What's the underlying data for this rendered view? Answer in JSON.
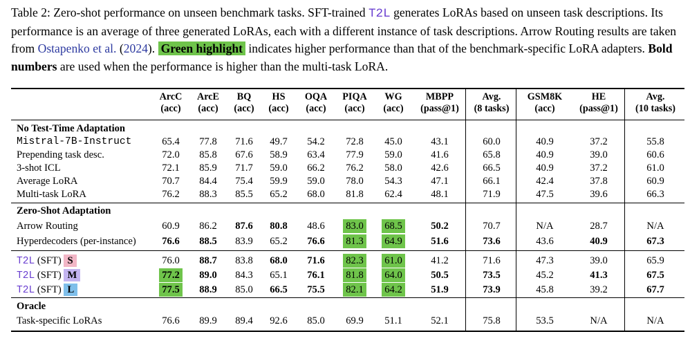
{
  "caption": {
    "p1": "Table 2: Zero-shot performance on unseen benchmark tasks. SFT-trained ",
    "t2l": "T2L",
    "p2": " generates LoRAs based on unseen task descriptions. Its performance is an average of three generated LoRAs, each with a different instance of task descriptions. Arrow Routing results are taken from ",
    "cite_a": "Ostapenko et al.",
    "cite_open": " (",
    "cite_year": "2024",
    "cite_close": "). ",
    "highlight": "Green highlight",
    "p3": " indicates higher performance than that of the benchmark-specific LoRA adapters. ",
    "bold": "Bold numbers",
    "p4": " are used when the performance is higher than the multi-task LoRA."
  },
  "columns": [
    {
      "l1": "ArcC",
      "l2": "(acc)"
    },
    {
      "l1": "ArcE",
      "l2": "(acc)"
    },
    {
      "l1": "BQ",
      "l2": "(acc)"
    },
    {
      "l1": "HS",
      "l2": "(acc)"
    },
    {
      "l1": "OQA",
      "l2": "(acc)"
    },
    {
      "l1": "PIQA",
      "l2": "(acc)"
    },
    {
      "l1": "WG",
      "l2": "(acc)"
    },
    {
      "l1": "MBPP",
      "l2": "(pass@1)"
    },
    {
      "l1": "Avg.",
      "l2": "(8 tasks)"
    },
    {
      "l1": "GSM8K",
      "l2": "(acc)"
    },
    {
      "l1": "HE",
      "l2": "(pass@1)"
    },
    {
      "l1": "Avg.",
      "l2": "(10 tasks)"
    }
  ],
  "sections": {
    "no_tta": "No Test-Time Adaptation",
    "zero_shot": "Zero-Shot Adaptation",
    "oracle": "Oracle"
  },
  "rows": {
    "mistral": {
      "label": "Mistral-7B-Instruct",
      "values": [
        "65.4",
        "77.8",
        "71.6",
        "49.7",
        "54.2",
        "72.8",
        "45.0",
        "43.1",
        "60.0",
        "40.9",
        "37.2",
        "55.8"
      ]
    },
    "prepend": {
      "label": "Prepending task desc.",
      "values": [
        "72.0",
        "85.8",
        "67.6",
        "58.9",
        "63.4",
        "77.9",
        "59.0",
        "41.6",
        "65.8",
        "40.9",
        "39.0",
        "60.6"
      ]
    },
    "icl": {
      "label": "3-shot ICL",
      "values": [
        "72.1",
        "85.9",
        "71.7",
        "59.0",
        "66.2",
        "76.2",
        "58.0",
        "42.6",
        "66.5",
        "40.9",
        "37.2",
        "61.0"
      ]
    },
    "avg_lora": {
      "label": "Average LoRA",
      "values": [
        "70.7",
        "84.4",
        "75.4",
        "59.9",
        "59.0",
        "78.0",
        "54.3",
        "47.1",
        "66.1",
        "42.4",
        "37.8",
        "60.9"
      ]
    },
    "mt_lora": {
      "label": "Multi-task LoRA",
      "values": [
        "76.2",
        "88.3",
        "85.5",
        "65.2",
        "68.0",
        "81.8",
        "62.4",
        "48.1",
        "71.9",
        "47.5",
        "39.6",
        "66.3"
      ]
    },
    "arrow": {
      "label": "Arrow Routing",
      "values": [
        "60.9",
        "86.2",
        "87.6",
        "80.8",
        "48.6",
        "83.0",
        "68.5",
        "50.2",
        "70.7",
        "N/A",
        "28.7",
        "N/A"
      ]
    },
    "hyper": {
      "label": "Hyperdecoders (per-instance)",
      "values": [
        "76.6",
        "88.5",
        "83.9",
        "65.2",
        "76.6",
        "81.3",
        "64.9",
        "51.6",
        "73.6",
        "43.6",
        "40.9",
        "67.3"
      ]
    },
    "t2l_s": {
      "name": "T2L",
      "suffix": " (SFT) ",
      "size": "S",
      "values": [
        "76.0",
        "88.7",
        "83.8",
        "68.0",
        "71.6",
        "82.3",
        "61.0",
        "41.2",
        "71.6",
        "47.3",
        "39.0",
        "65.9"
      ]
    },
    "t2l_m": {
      "name": "T2L",
      "suffix": " (SFT) ",
      "size": "M",
      "values": [
        "77.2",
        "89.0",
        "84.3",
        "65.1",
        "76.1",
        "81.8",
        "64.0",
        "50.5",
        "73.5",
        "45.2",
        "41.3",
        "67.5"
      ]
    },
    "t2l_l": {
      "name": "T2L",
      "suffix": " (SFT) ",
      "size": "L",
      "values": [
        "77.5",
        "88.9",
        "85.0",
        "66.5",
        "75.5",
        "82.1",
        "64.2",
        "51.9",
        "73.9",
        "45.8",
        "39.2",
        "67.7"
      ]
    },
    "task_lora": {
      "label": "Task-specific LoRAs",
      "values": [
        "76.6",
        "89.9",
        "89.4",
        "92.6",
        "85.0",
        "69.9",
        "51.1",
        "52.1",
        "75.8",
        "53.5",
        "N/A",
        "N/A"
      ]
    }
  },
  "colors": {
    "highlight": "#6fc44b",
    "t2l_text": "#6a3fd0",
    "badge_s": "#f2b6c6",
    "badge_m": "#c3b4f0",
    "badge_l": "#7fbfea",
    "cite": "#2d3aa0"
  }
}
